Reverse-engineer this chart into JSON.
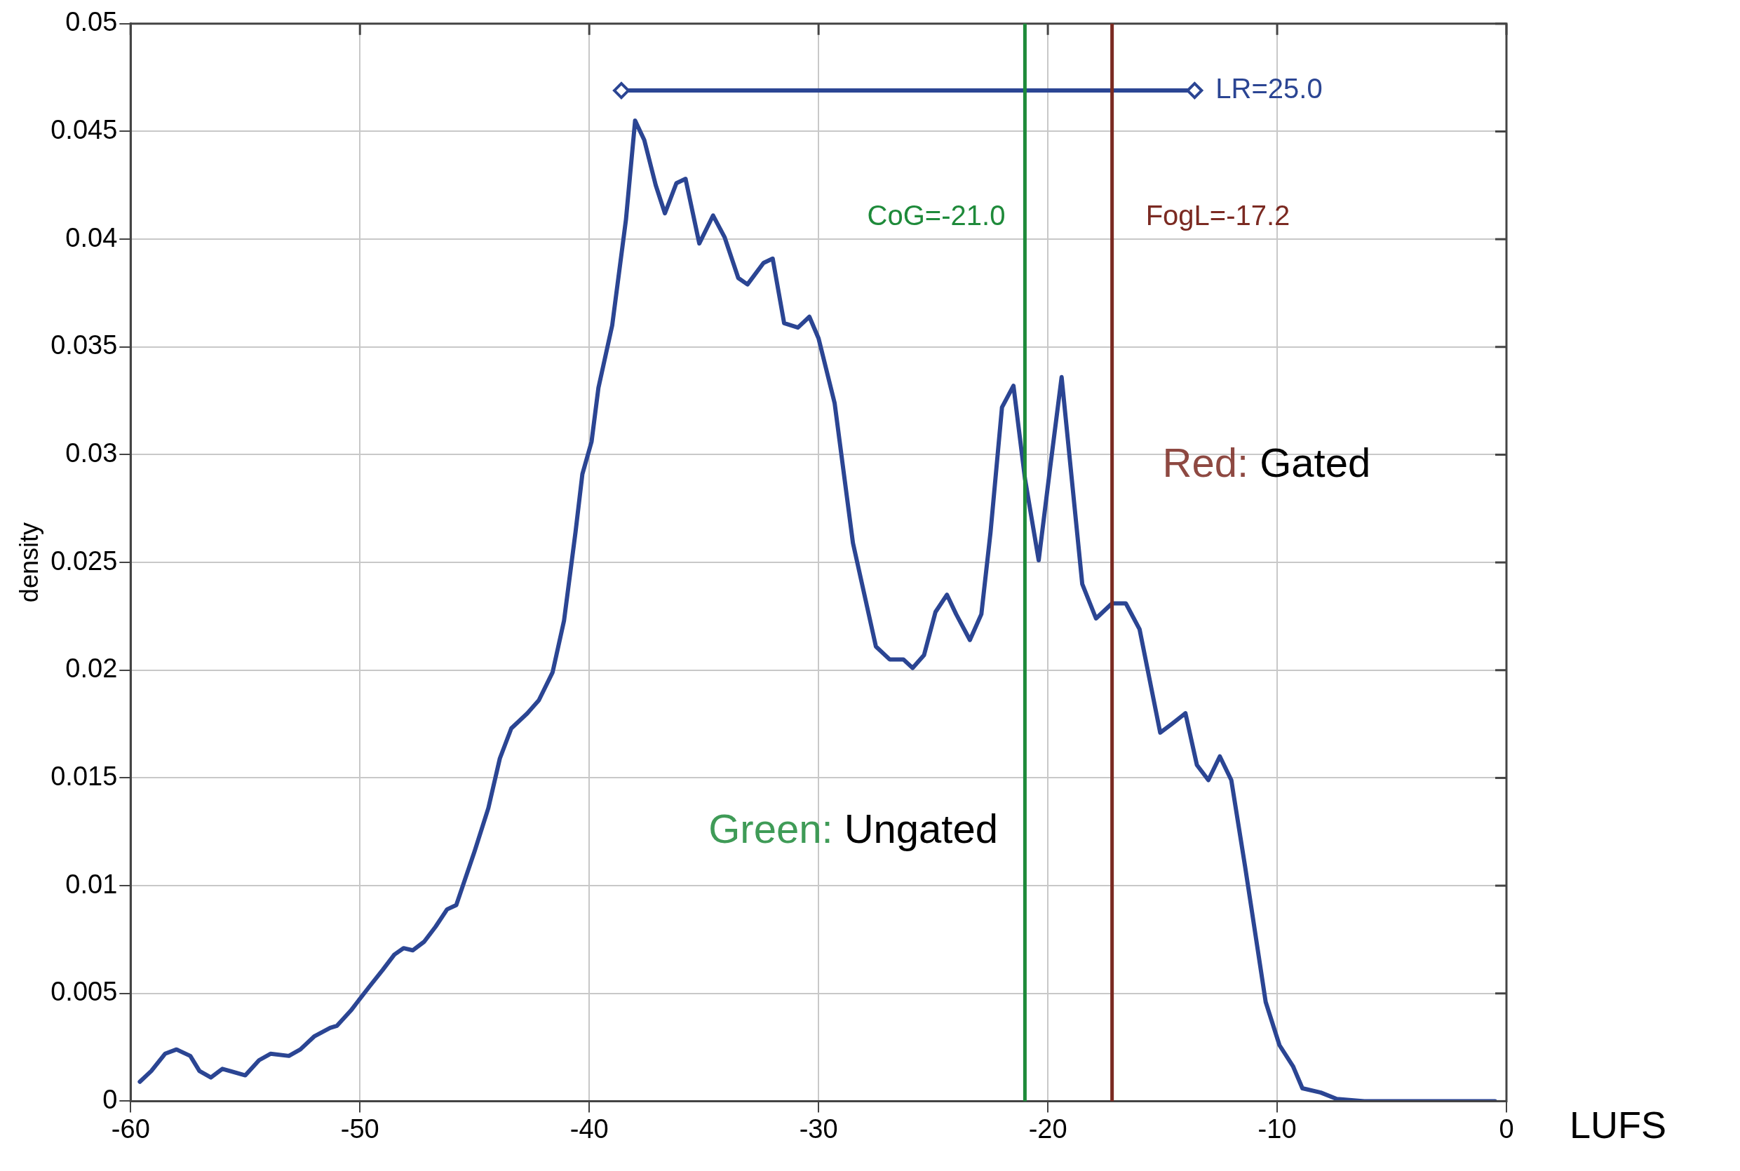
{
  "chart_data": {
    "type": "line",
    "xlabel": "LUFS",
    "ylabel": "density",
    "xlim": [
      -60,
      0
    ],
    "xticks": [
      -60,
      -50,
      -40,
      -30,
      -20,
      -10,
      0
    ],
    "ylim": [
      0,
      0.05
    ],
    "yticks": [
      0,
      0.005,
      0.01,
      0.015,
      0.02,
      0.025,
      0.03,
      0.035,
      0.04,
      0.045,
      0.05
    ],
    "grid": true,
    "legend": false,
    "series": [
      {
        "color": "#2b4593",
        "marker": "none",
        "x": [
          -59.6,
          -59.1,
          -58.5,
          -58.0,
          -57.4,
          -57.0,
          -56.5,
          -56.0,
          -55.0,
          -54.4,
          -53.9,
          -53.1,
          -52.6,
          -52.0,
          -51.3,
          -51.0,
          -50.4,
          -49.6,
          -49.0,
          -48.5,
          -48.1,
          -47.7,
          -47.2,
          -46.7,
          -46.2,
          -45.8,
          -45.0,
          -44.4,
          -43.9,
          -43.4,
          -42.7,
          -42.2,
          -41.6,
          -41.1,
          -40.6,
          -40.3,
          -39.9,
          -39.6,
          -39.0,
          -38.4,
          -38.0,
          -37.6,
          -37.1,
          -36.7,
          -36.2,
          -35.8,
          -35.2,
          -34.6,
          -34.1,
          -33.5,
          -33.1,
          -32.4,
          -32.0,
          -31.5,
          -30.9,
          -30.4,
          -30.0,
          -29.3,
          -28.5,
          -27.5,
          -26.9,
          -26.3,
          -25.9,
          -25.4,
          -24.9,
          -24.4,
          -24.0,
          -23.4,
          -22.9,
          -22.5,
          -22.0,
          -21.5,
          -21.0,
          -20.4,
          -19.9,
          -19.4,
          -18.5,
          -17.9,
          -17.2,
          -16.6,
          -16.0,
          -15.1,
          -14.6,
          -14.0,
          -13.5,
          -13.0,
          -12.5,
          -12.0,
          -11.4,
          -10.5,
          -9.9,
          -9.3,
          -8.9,
          -8.1,
          -7.4,
          -6.2,
          -0.5
        ],
        "values": [
          0.0009,
          0.0014,
          0.0022,
          0.0024,
          0.0021,
          0.0014,
          0.0011,
          0.0015,
          0.0012,
          0.0019,
          0.0022,
          0.0021,
          0.0024,
          0.003,
          0.0034,
          0.0035,
          0.0042,
          0.0053,
          0.0061,
          0.0068,
          0.0071,
          0.007,
          0.0074,
          0.0081,
          0.0089,
          0.0091,
          0.0116,
          0.0136,
          0.0159,
          0.0173,
          0.018,
          0.0186,
          0.0199,
          0.0223,
          0.0264,
          0.0291,
          0.0306,
          0.0331,
          0.036,
          0.0409,
          0.0455,
          0.0446,
          0.0425,
          0.0412,
          0.0426,
          0.0428,
          0.0398,
          0.0411,
          0.0401,
          0.0382,
          0.0379,
          0.0389,
          0.0391,
          0.0361,
          0.0359,
          0.0364,
          0.0354,
          0.0324,
          0.0259,
          0.0211,
          0.0205,
          0.0205,
          0.0201,
          0.0207,
          0.0227,
          0.0235,
          0.0226,
          0.0214,
          0.0226,
          0.0264,
          0.0322,
          0.0332,
          0.0289,
          0.0251,
          0.0294,
          0.0336,
          0.024,
          0.0224,
          0.0231,
          0.0231,
          0.0219,
          0.0171,
          0.0175,
          0.018,
          0.0156,
          0.0149,
          0.016,
          0.0149,
          0.0109,
          0.0046,
          0.0026,
          0.0016,
          0.0006,
          0.0004,
          0.0001,
          0,
          0
        ]
      },
      {
        "name": "LR=25.0",
        "color": "#2b4593",
        "marker": "diamond",
        "x": [
          -38.6,
          -13.6
        ],
        "values": [
          0.0469,
          0.0469
        ]
      }
    ],
    "ref_lines": [
      {
        "axis": "x",
        "value": -21.0,
        "label": "CoG=-21.0",
        "color": "#1e8a3a"
      },
      {
        "axis": "x",
        "value": -17.2,
        "label": "FogL=-17.2",
        "color": "#7b2a22"
      }
    ],
    "annotations": [
      "Green: Ungated",
      "Red: Gated"
    ]
  }
}
